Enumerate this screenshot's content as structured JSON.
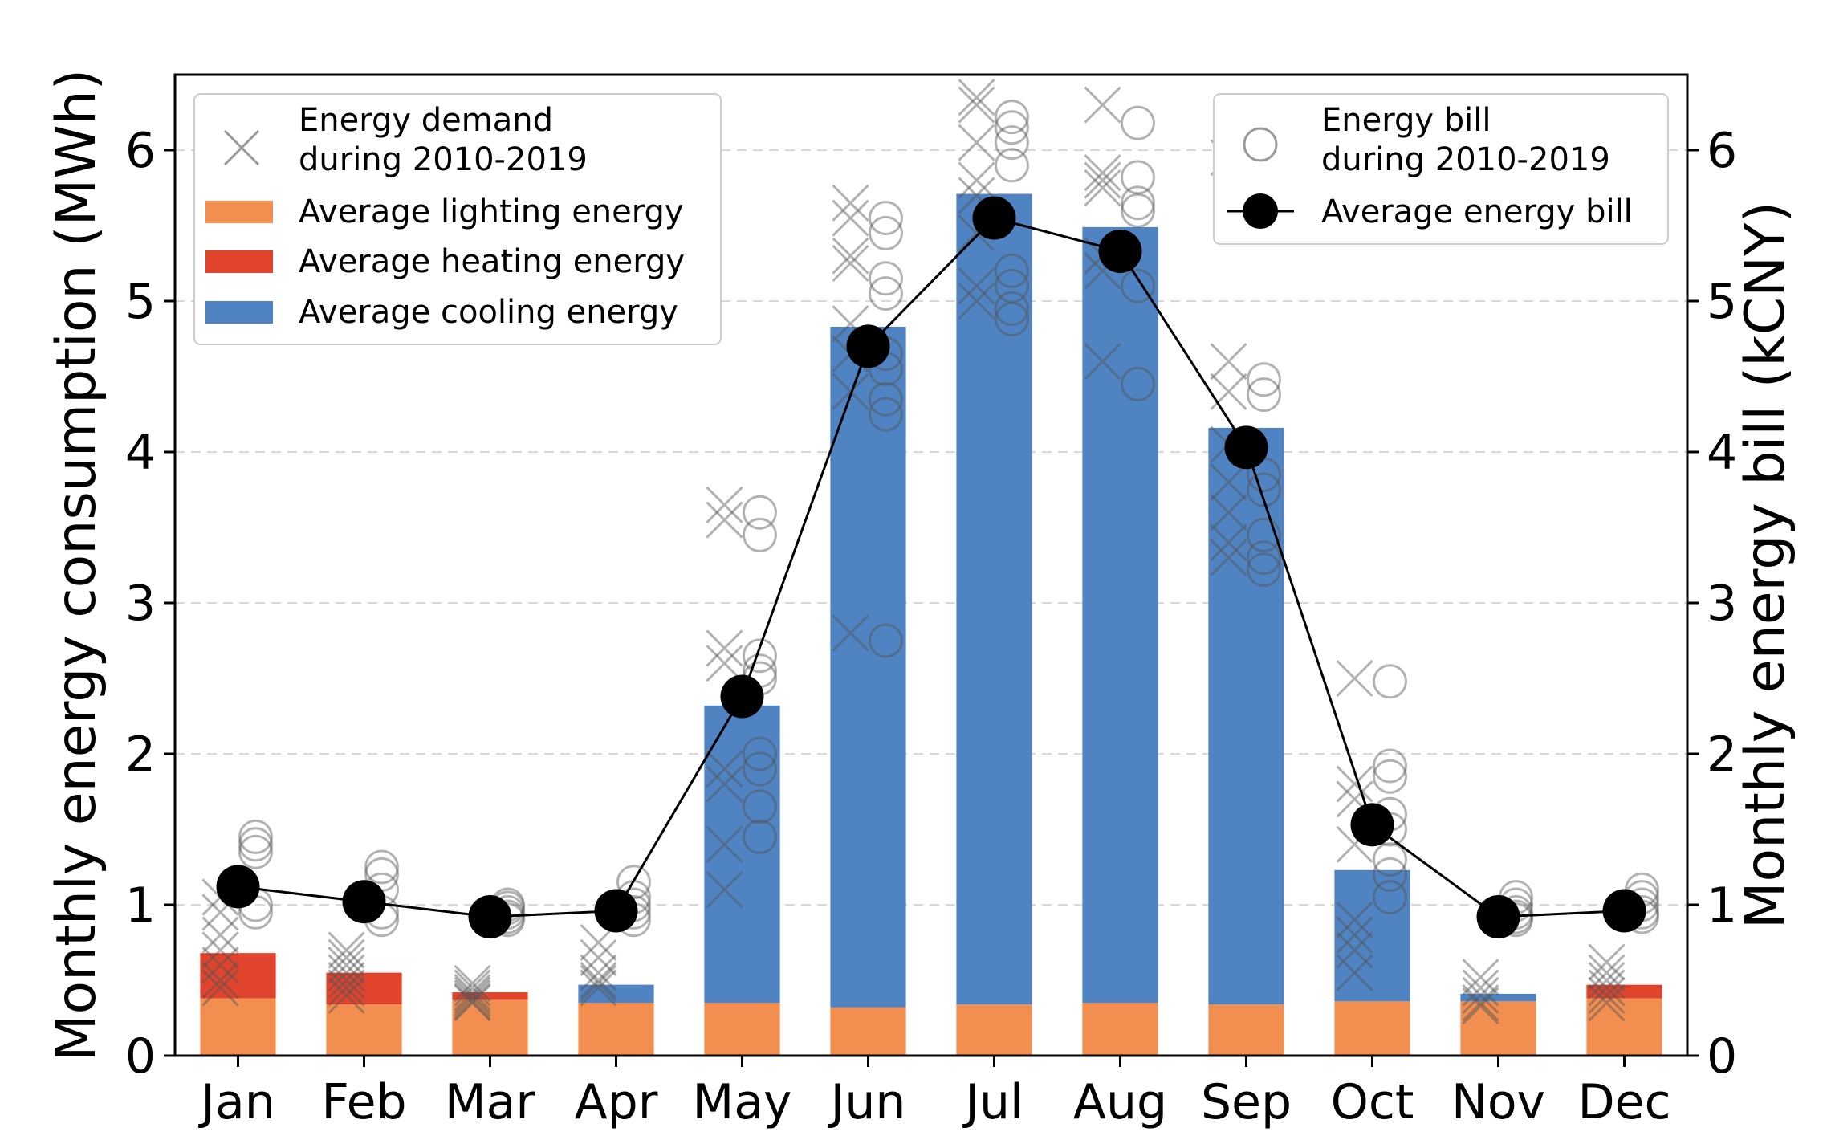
{
  "chart_data": {
    "type": "bar",
    "categories": [
      "Jan",
      "Feb",
      "Mar",
      "Apr",
      "May",
      "Jun",
      "Jul",
      "Aug",
      "Sep",
      "Oct",
      "Nov",
      "Dec"
    ],
    "stacked": true,
    "series": [
      {
        "name": "Average lighting energy",
        "color": "#f28e50",
        "values": [
          0.38,
          0.34,
          0.37,
          0.35,
          0.35,
          0.32,
          0.34,
          0.35,
          0.34,
          0.36,
          0.36,
          0.38
        ]
      },
      {
        "name": "Average heating energy",
        "color": "#e0442d",
        "values": [
          0.3,
          0.21,
          0.05,
          0.0,
          0.0,
          0.0,
          0.0,
          0.0,
          0.0,
          0.0,
          0.0,
          0.09
        ]
      },
      {
        "name": "Average cooling energy",
        "color": "#4f83c2",
        "values": [
          0.0,
          0.0,
          0.0,
          0.12,
          1.97,
          4.51,
          5.37,
          5.14,
          3.82,
          0.87,
          0.05,
          0.0
        ]
      }
    ],
    "line": {
      "name": "Average energy bill",
      "color": "#000000",
      "axis": "right",
      "values": [
        1.12,
        1.02,
        0.92,
        0.96,
        2.38,
        4.7,
        5.55,
        5.33,
        4.03,
        1.53,
        0.92,
        0.96
      ]
    },
    "scatter_demand": {
      "name": "Energy demand during 2010-2019",
      "values": [
        [
          1.05,
          0.95,
          0.8,
          0.7,
          0.6,
          0.5,
          0.45
        ],
        [
          0.7,
          0.65,
          0.6,
          0.55,
          0.5,
          0.45,
          0.4
        ],
        [
          0.48,
          0.45,
          0.42,
          0.4,
          0.38,
          0.36,
          0.35
        ],
        [
          0.75,
          0.65,
          0.55,
          0.5,
          0.48,
          0.45
        ],
        [
          3.65,
          3.55,
          2.7,
          2.6,
          1.9,
          1.8,
          1.4,
          1.1
        ],
        [
          5.65,
          5.55,
          5.3,
          5.25,
          4.85,
          4.65,
          4.4,
          2.8
        ],
        [
          6.35,
          6.3,
          6.05,
          5.8,
          5.7,
          5.45,
          5.1,
          5.0
        ],
        [
          6.3,
          5.85,
          5.8,
          5.75,
          5.3,
          5.2,
          4.6
        ],
        [
          5.95,
          4.6,
          4.4,
          4.05,
          3.8,
          3.6,
          3.4,
          3.3
        ],
        [
          2.5,
          1.8,
          1.7,
          1.4,
          0.9,
          0.8,
          0.7,
          0.55
        ],
        [
          0.52,
          0.45,
          0.4,
          0.35,
          0.33
        ],
        [
          0.62,
          0.55,
          0.5,
          0.45,
          0.4,
          0.35
        ]
      ]
    },
    "scatter_bill": {
      "name": "Energy bill during 2010-2019",
      "values": [
        [
          1.45,
          1.4,
          1.35,
          1.0,
          0.95
        ],
        [
          1.25,
          1.2,
          1.1,
          0.95,
          0.9
        ],
        [
          1.0,
          0.98,
          0.95,
          0.92,
          0.9
        ],
        [
          1.15,
          1.05,
          1.0,
          0.95,
          0.9
        ],
        [
          3.6,
          3.45,
          2.65,
          2.55,
          2.5,
          2.0,
          1.9,
          1.65,
          1.45
        ],
        [
          5.55,
          5.45,
          5.15,
          5.05,
          4.65,
          4.55,
          4.35,
          4.25,
          2.75
        ],
        [
          6.22,
          6.15,
          6.05,
          5.9,
          5.2,
          5.1,
          4.95,
          4.88
        ],
        [
          6.18,
          5.82,
          5.65,
          5.6,
          5.1,
          4.45
        ],
        [
          5.8,
          4.48,
          4.38,
          3.85,
          3.75,
          3.45,
          3.3,
          3.22
        ],
        [
          2.48,
          1.92,
          1.85,
          1.6,
          1.5,
          1.3,
          1.2,
          1.05
        ],
        [
          1.05,
          1.0,
          0.95,
          0.92,
          0.9
        ],
        [
          1.1,
          1.05,
          1.0,
          0.95,
          0.92
        ]
      ]
    },
    "ylabel": "Monthly energy consumption (MWh)",
    "ylabel_right": "Monthly energy bill (kCNY)",
    "ylim": [
      0,
      6.5
    ],
    "ylim_right": [
      0,
      6.5
    ],
    "yticks": [
      "0",
      "1",
      "2",
      "3",
      "4",
      "5",
      "6"
    ],
    "yticks_right": [
      "0",
      "1",
      "2",
      "3",
      "4",
      "5",
      "6"
    ],
    "legend_left": {
      "items": [
        {
          "label": "Energy demand",
          "label2": "during 2010-2019"
        },
        {
          "label": "Average lighting energy"
        },
        {
          "label": "Average heating energy"
        },
        {
          "label": "Average cooling energy"
        }
      ]
    },
    "legend_right": {
      "items": [
        {
          "label": "Energy bill",
          "label2": "during 2010-2019"
        },
        {
          "label": "Average energy bill"
        }
      ]
    }
  }
}
